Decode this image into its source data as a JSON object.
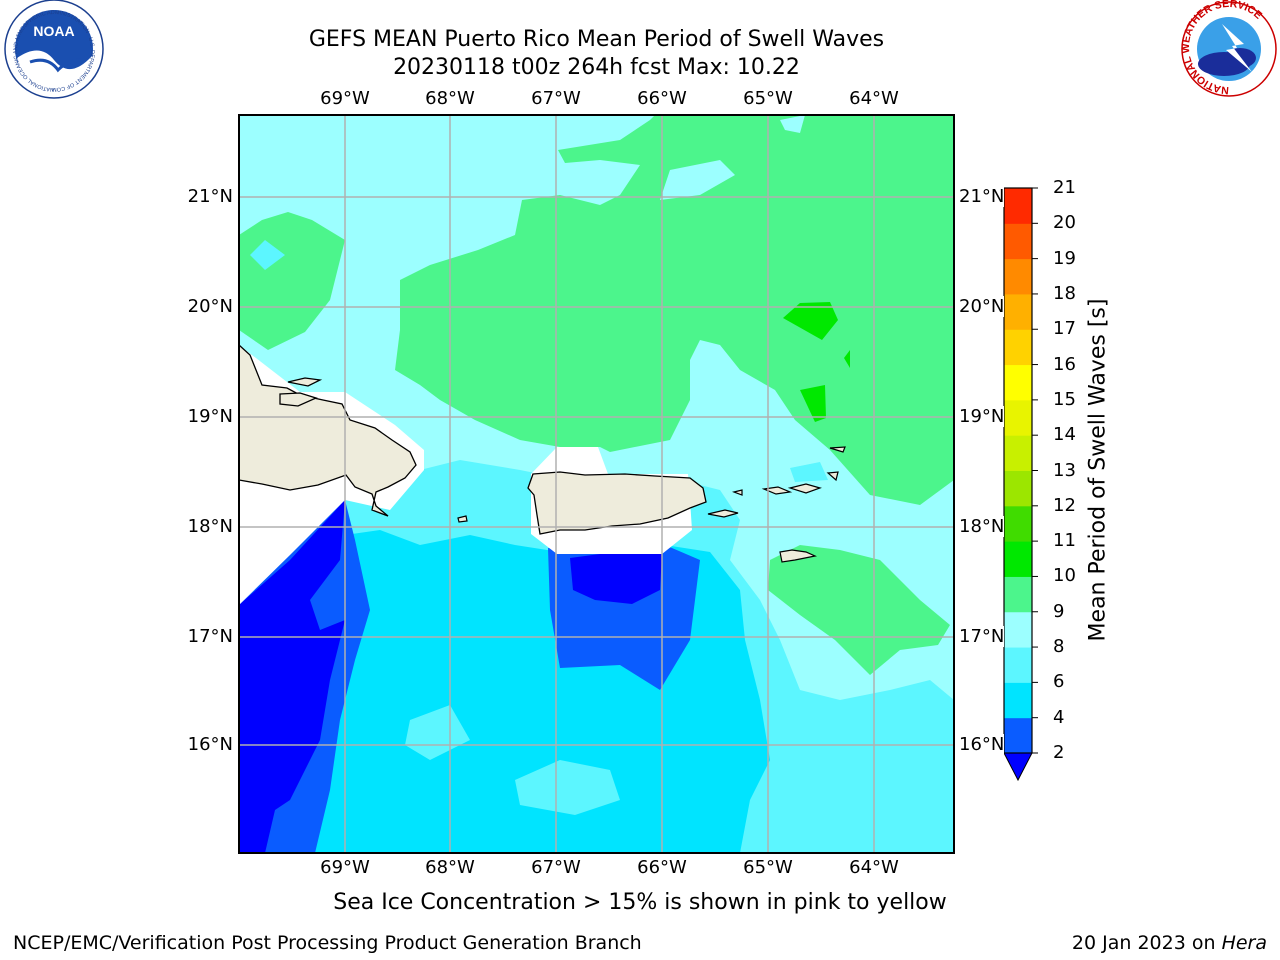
{
  "header": {
    "title_line1": "GEFS MEAN Puerto Rico Mean Period of Swell Waves",
    "title_line2": "20230118 t00z 264h fcst   Max: 10.22"
  },
  "logos": {
    "noaa_text": "NOAA",
    "noaa_ring_text": "NATIONAL OCEANIC AND ATMOSPHERIC ADMINISTRATION · U.S. DEPARTMENT OF COMMERCE",
    "nws_ring_text": "NATIONAL WEATHER SERVICE"
  },
  "map": {
    "lon_labels": [
      "69°W",
      "68°W",
      "67°W",
      "66°W",
      "65°W",
      "64°W"
    ],
    "lat_labels": [
      "21°N",
      "20°N",
      "19°N",
      "18°N",
      "17°N",
      "16°N"
    ],
    "colors": {
      "land": "#eeecdc",
      "missing": "#ffffff",
      "gridline": "#b0b0b0"
    }
  },
  "colorbar": {
    "title": "Mean Period of Swell Waves [s]",
    "tick_labels": [
      "2",
      "4",
      "6",
      "8",
      "9",
      "10",
      "11",
      "12",
      "13",
      "14",
      "15",
      "16",
      "17",
      "18",
      "19",
      "20",
      "21"
    ],
    "bins": [
      {
        "range": "2-4",
        "color": "#0a5cff"
      },
      {
        "range": "4-6",
        "color": "#00e4ff"
      },
      {
        "range": "6-8",
        "color": "#5cf6ff"
      },
      {
        "range": "8-9",
        "color": "#9cffff"
      },
      {
        "range": "9-10",
        "color": "#4cf58c"
      },
      {
        "range": "10-11",
        "color": "#00e800"
      },
      {
        "range": "11-12",
        "color": "#40dc00"
      },
      {
        "range": "12-13",
        "color": "#9ce600"
      },
      {
        "range": "13-14",
        "color": "#c8f000"
      },
      {
        "range": "14-15",
        "color": "#e8f400"
      },
      {
        "range": "15-16",
        "color": "#ffff00"
      },
      {
        "range": "16-17",
        "color": "#ffd200"
      },
      {
        "range": "17-18",
        "color": "#ffb000"
      },
      {
        "range": "18-19",
        "color": "#ff8a00"
      },
      {
        "range": "19-20",
        "color": "#ff5a00"
      },
      {
        "range": "20-21",
        "color": "#ff2a00"
      }
    ],
    "under_color": "#0000ff",
    "over_color": "#ff0000"
  },
  "footer": {
    "ice_note": "Sea Ice Concentration > 15% is shown in pink to yellow",
    "credit_left": "NCEP/EMC/Verification Post Processing Product Generation Branch",
    "date": "20 Jan 2023 on",
    "machine": "Hera"
  }
}
